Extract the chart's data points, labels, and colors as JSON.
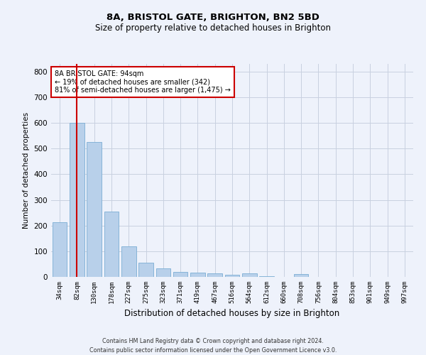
{
  "title_line1": "8A, BRISTOL GATE, BRIGHTON, BN2 5BD",
  "title_line2": "Size of property relative to detached houses in Brighton",
  "xlabel": "Distribution of detached houses by size in Brighton",
  "ylabel": "Number of detached properties",
  "categories": [
    "34sqm",
    "82sqm",
    "130sqm",
    "178sqm",
    "227sqm",
    "275sqm",
    "323sqm",
    "371sqm",
    "419sqm",
    "467sqm",
    "516sqm",
    "564sqm",
    "612sqm",
    "660sqm",
    "708sqm",
    "756sqm",
    "804sqm",
    "853sqm",
    "901sqm",
    "949sqm",
    "997sqm"
  ],
  "values": [
    213,
    600,
    525,
    255,
    118,
    55,
    33,
    20,
    17,
    13,
    8,
    13,
    2,
    0,
    12,
    0,
    0,
    0,
    0,
    0,
    0
  ],
  "bar_color": "#b8d0ea",
  "bar_edge_color": "#7aadd4",
  "highlight_index": 1,
  "highlight_color": "#cc0000",
  "ylim": [
    0,
    830
  ],
  "yticks": [
    0,
    100,
    200,
    300,
    400,
    500,
    600,
    700,
    800
  ],
  "annotation_text": "8A BRISTOL GATE: 94sqm\n← 19% of detached houses are smaller (342)\n81% of semi-detached houses are larger (1,475) →",
  "annotation_box_color": "#ffffff",
  "annotation_border_color": "#cc0000",
  "footer_line1": "Contains HM Land Registry data © Crown copyright and database right 2024.",
  "footer_line2": "Contains public sector information licensed under the Open Government Licence v3.0.",
  "background_color": "#eef2fb",
  "grid_color": "#c8d0e0"
}
